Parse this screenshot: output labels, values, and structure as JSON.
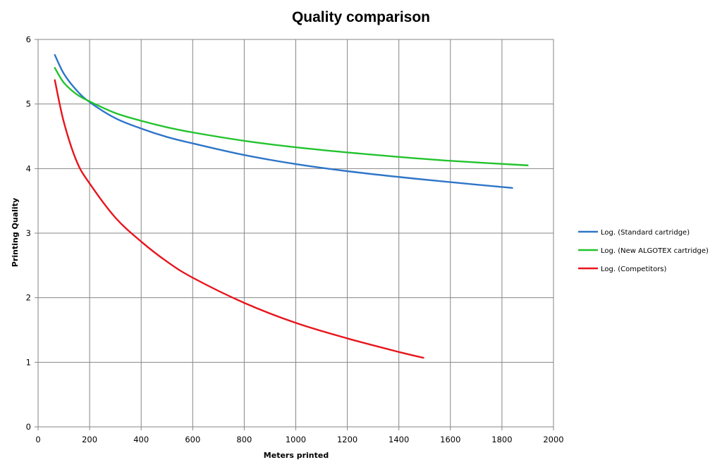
{
  "chart_data": {
    "type": "line",
    "title": "Quality comparison",
    "xlabel": "Meters printed",
    "ylabel": "Printing Quality",
    "xlim": [
      0,
      2000
    ],
    "ylim": [
      0,
      6
    ],
    "x_ticks": [
      0,
      200,
      400,
      600,
      800,
      1000,
      1200,
      1400,
      1600,
      1800,
      2000
    ],
    "y_ticks": [
      0,
      1,
      2,
      3,
      4,
      5,
      6
    ],
    "grid": true,
    "legend_position": "right",
    "series": [
      {
        "name": "Log. (Standard cartridge)",
        "color": "#2E75C8",
        "x": [
          65,
          100,
          150,
          200,
          300,
          400,
          500,
          600,
          800,
          1000,
          1200,
          1400,
          1600,
          1840
        ],
        "y": [
          5.76,
          5.47,
          5.21,
          5.03,
          4.78,
          4.62,
          4.49,
          4.39,
          4.21,
          4.07,
          3.96,
          3.87,
          3.79,
          3.7
        ]
      },
      {
        "name": "Log. (New ALGOTEX cartridge)",
        "color": "#22C32E",
        "x": [
          65,
          100,
          150,
          200,
          300,
          400,
          500,
          600,
          800,
          1000,
          1200,
          1400,
          1600,
          1900
        ],
        "y": [
          5.56,
          5.33,
          5.15,
          5.04,
          4.86,
          4.74,
          4.64,
          4.56,
          4.43,
          4.33,
          4.25,
          4.18,
          4.12,
          4.05
        ]
      },
      {
        "name": "Log. (Competitors)",
        "color": "#E8141B",
        "x": [
          65,
          100,
          150,
          200,
          300,
          400,
          500,
          600,
          800,
          1000,
          1200,
          1400,
          1495
        ],
        "y": [
          5.37,
          4.72,
          4.11,
          3.77,
          3.24,
          2.87,
          2.56,
          2.31,
          1.92,
          1.61,
          1.37,
          1.16,
          1.07
        ]
      }
    ]
  }
}
